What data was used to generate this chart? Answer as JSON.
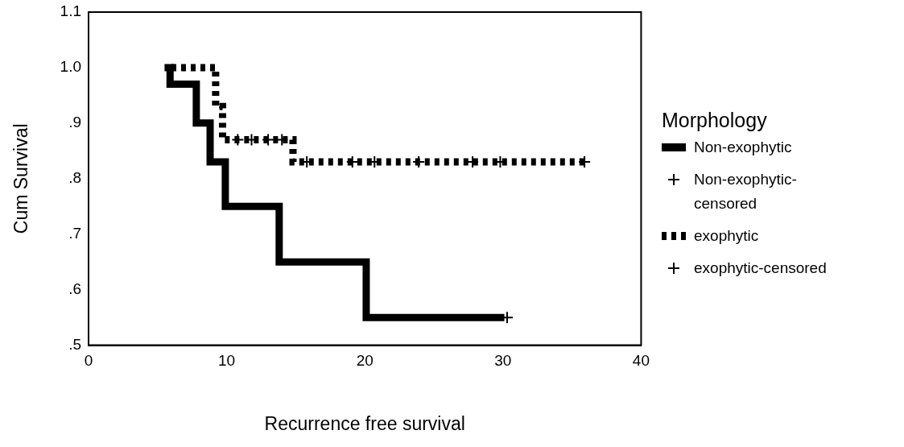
{
  "chart_data": {
    "type": "step",
    "xlabel": "Recurrence free survival",
    "ylabel": "Cum Survival",
    "legend_title": "Morphology",
    "legend": "right",
    "grid": false,
    "xlim": [
      0,
      40
    ],
    "xticks": [
      0,
      10,
      20,
      30,
      40
    ],
    "ylim": [
      0.5,
      1.1
    ],
    "yticks": [
      {
        "value": 0.5,
        "label": ".5"
      },
      {
        "value": 0.6,
        "label": ".6"
      },
      {
        "value": 0.7,
        "label": ".7"
      },
      {
        "value": 0.8,
        "label": ".8"
      },
      {
        "value": 0.9,
        "label": ".9"
      },
      {
        "value": 1.0,
        "label": "1.0"
      },
      1.1
    ],
    "series": [
      {
        "name": "Non-exophytic",
        "color": "#000000",
        "line_style": "solid",
        "x": [
          5.5,
          5.9,
          7.8,
          8.8,
          9.9,
          13.8,
          20.1,
          30.1
        ],
        "values": [
          1.0,
          0.97,
          0.9,
          0.83,
          0.75,
          0.65,
          0.55,
          0.55
        ]
      },
      {
        "name": "Non-exophytic-censored",
        "type": "scatter",
        "marker": "cross",
        "color": "#000000",
        "x": [
          30.3
        ],
        "values": [
          0.55
        ]
      },
      {
        "name": "exophytic",
        "color": "#000000",
        "line_style": "dotted",
        "x": [
          6.0,
          9.2,
          9.7,
          14.8,
          36.2
        ],
        "values": [
          1.0,
          0.93,
          0.87,
          0.83,
          0.83
        ]
      },
      {
        "name": "exophytic-censored",
        "type": "scatter",
        "marker": "cross",
        "color": "#000000",
        "x": [
          10.8,
          11.8,
          13.0,
          14.0,
          15.8,
          19.1,
          20.7,
          23.9,
          27.8,
          29.8,
          35.9
        ],
        "values": [
          0.87,
          0.87,
          0.87,
          0.87,
          0.83,
          0.83,
          0.83,
          0.83,
          0.83,
          0.83,
          0.83
        ]
      }
    ]
  }
}
